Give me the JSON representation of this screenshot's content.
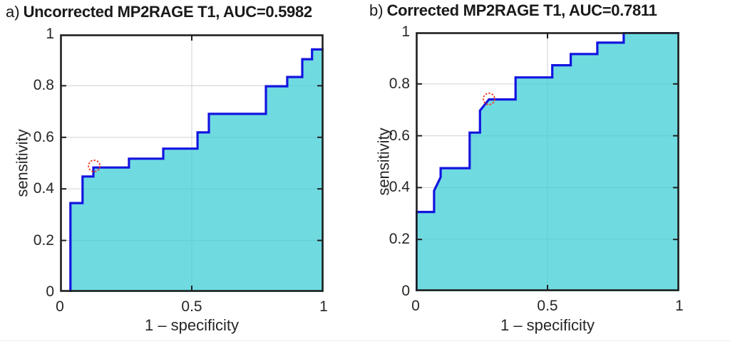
{
  "page": {
    "background": "#ffffff"
  },
  "chart_data": [
    {
      "type": "area",
      "panel_label": "a)",
      "title": "Uncorrected MP2RAGE T1, AUC=0.5982",
      "auc": "0.5982",
      "xlabel": "1 – specificity",
      "ylabel": "sensitivity",
      "xlim": [
        0,
        1
      ],
      "ylim": [
        0,
        1
      ],
      "xticks": [
        0,
        0.5,
        1
      ],
      "xticklabels": [
        "0",
        "0.5",
        "1"
      ],
      "yticks": [
        0,
        0.2,
        0.4,
        0.6,
        0.8,
        1
      ],
      "yticklabels": [
        "0",
        "0.2",
        "0.4",
        "0.6",
        "0.8",
        "1"
      ],
      "grid": {
        "x": [
          0.5
        ],
        "y": [
          0.2,
          0.4,
          0.6,
          0.8
        ]
      },
      "legend": "none",
      "series": [
        {
          "name": "ROC curve",
          "points": [
            [
              0.04,
              0.0
            ],
            [
              0.04,
              0.345
            ],
            [
              0.086,
              0.345
            ],
            [
              0.086,
              0.448
            ],
            [
              0.127,
              0.448
            ],
            [
              0.127,
              0.483
            ],
            [
              0.262,
              0.483
            ],
            [
              0.262,
              0.517
            ],
            [
              0.392,
              0.517
            ],
            [
              0.392,
              0.556
            ],
            [
              0.522,
              0.556
            ],
            [
              0.522,
              0.619
            ],
            [
              0.565,
              0.619
            ],
            [
              0.565,
              0.691
            ],
            [
              0.781,
              0.691
            ],
            [
              0.781,
              0.798
            ],
            [
              0.862,
              0.798
            ],
            [
              0.862,
              0.834
            ],
            [
              0.919,
              0.834
            ],
            [
              0.919,
              0.903
            ],
            [
              0.956,
              0.903
            ],
            [
              0.956,
              0.941
            ],
            [
              1.0,
              0.941
            ]
          ]
        }
      ],
      "optimal_point": [
        0.13,
        0.489
      ],
      "colors": {
        "line": "#1414e0",
        "fill": "rgba(55,205,214,0.72)",
        "marker": "#ef3b24",
        "axis": "#1f1f1f",
        "grid": "#d9d9d9"
      }
    },
    {
      "type": "area",
      "panel_label": "b)",
      "title": "Corrected MP2RAGE T1, AUC=0.7811",
      "auc": "0.7811",
      "xlabel": "1 – specificity",
      "ylabel": "sensitivity",
      "xlim": [
        0,
        1
      ],
      "ylim": [
        0,
        1
      ],
      "xticks": [
        0,
        0.5,
        1
      ],
      "xticklabels": [
        "0",
        "0.5",
        "1"
      ],
      "yticks": [
        0,
        0.2,
        0.4,
        0.6,
        0.8,
        1
      ],
      "yticklabels": [
        "0",
        "0.2",
        "0.4",
        "0.6",
        "0.8",
        "1"
      ],
      "grid": {
        "x": [
          0.5
        ],
        "y": [
          0.2,
          0.4,
          0.6,
          0.8
        ]
      },
      "legend": "none",
      "series": [
        {
          "name": "ROC curve",
          "points": [
            [
              0.0,
              0.0
            ],
            [
              0.0,
              0.306
            ],
            [
              0.07,
              0.306
            ],
            [
              0.07,
              0.388
            ],
            [
              0.095,
              0.44
            ],
            [
              0.095,
              0.475
            ],
            [
              0.205,
              0.475
            ],
            [
              0.205,
              0.612
            ],
            [
              0.244,
              0.612
            ],
            [
              0.244,
              0.697
            ],
            [
              0.278,
              0.74
            ],
            [
              0.379,
              0.74
            ],
            [
              0.379,
              0.825
            ],
            [
              0.518,
              0.825
            ],
            [
              0.518,
              0.872
            ],
            [
              0.588,
              0.872
            ],
            [
              0.588,
              0.915
            ],
            [
              0.689,
              0.915
            ],
            [
              0.689,
              0.959
            ],
            [
              0.789,
              0.959
            ],
            [
              0.789,
              1.0
            ],
            [
              1.0,
              1.0
            ]
          ]
        }
      ],
      "optimal_point": [
        0.278,
        0.742
      ],
      "colors": {
        "line": "#1414e0",
        "fill": "rgba(55,205,214,0.72)",
        "marker": "#ef3b24",
        "axis": "#1f1f1f",
        "grid": "#d9d9d9"
      }
    }
  ]
}
